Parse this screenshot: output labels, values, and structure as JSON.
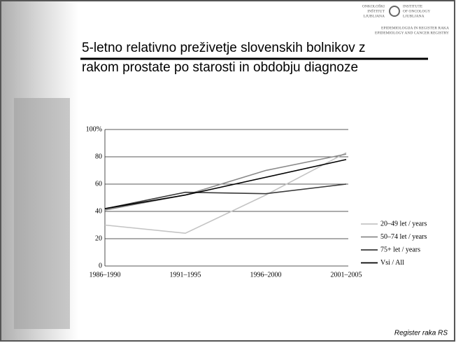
{
  "header": {
    "logo_left": [
      "ONKOLOŠKI",
      "INŠTITUT",
      "LJUBLJANA"
    ],
    "logo_right": [
      "INSTITUTE",
      "OF ONCOLOGY",
      "LJUBLJANA"
    ],
    "dept": [
      "EPIDEMIOLOGIJA IN REGISTER RAKA",
      "EPIDEMIOLOGY AND CANCER REGISTRY"
    ]
  },
  "footer": "Register raka RS",
  "chart_data": {
    "type": "line",
    "title": [
      "5-letno relativno preživetje slovenskih  bolnikov z",
      "rakom prostate po starosti in obdobju diagnoze"
    ],
    "categories": [
      "1986–1990",
      "1991–1995",
      "1996–2000",
      "2001–2005"
    ],
    "series": [
      {
        "name": "20–49 let / years",
        "color": "#c4c4c4",
        "values": [
          30,
          24,
          52,
          83
        ]
      },
      {
        "name": "50–74 let / years",
        "color": "#8a8a8a",
        "values": [
          41,
          52,
          70,
          82
        ]
      },
      {
        "name": "75+ let / years",
        "color": "#3a3a3a",
        "values": [
          42,
          54,
          53,
          60
        ]
      },
      {
        "name": "Vsi / All",
        "color": "#000000",
        "values": [
          42,
          52,
          65,
          78
        ]
      }
    ],
    "ylim": [
      0,
      100
    ],
    "yticks": [
      0,
      20,
      40,
      60,
      80,
      {
        "value": 100,
        "label": "100%"
      }
    ],
    "grid": true
  }
}
